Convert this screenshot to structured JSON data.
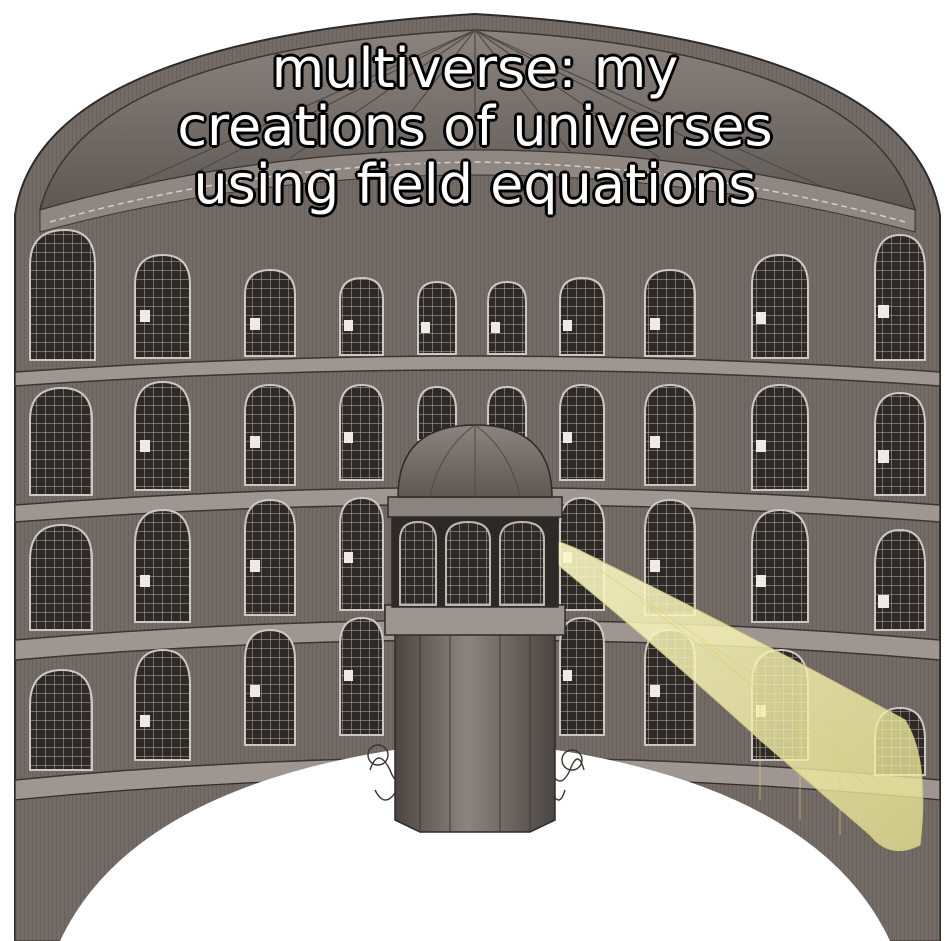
{
  "meme": {
    "caption_lines": [
      "multiverse: my",
      "creations of universes",
      "using field equations"
    ]
  },
  "illustration": {
    "subject": "panopticon",
    "elements": [
      "domed rotunda",
      "tiers of arched cells",
      "central watch tower",
      "barbed wire",
      "searchlight beam"
    ],
    "colors": {
      "stone": "#6f6965",
      "stone_dark": "#3f3a37",
      "stone_light": "#9a938d",
      "cell_interior": "#2b2725",
      "floor": "#ffffff",
      "beam": "#f4f0a6"
    }
  }
}
